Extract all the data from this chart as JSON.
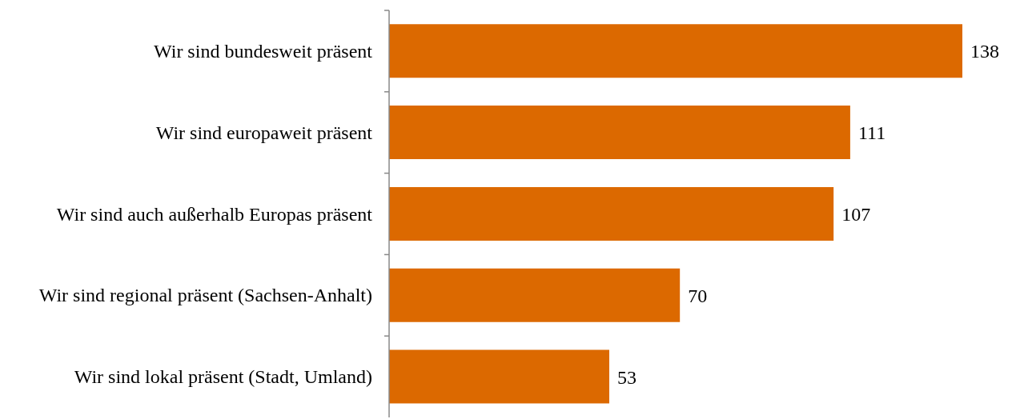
{
  "chart_data": {
    "type": "bar",
    "orientation": "horizontal",
    "categories": [
      "Wir sind bundesweit präsent",
      "Wir sind europaweit präsent",
      "Wir sind auch außerhalb Europas präsent",
      "Wir sind regional präsent (Sachsen-Anhalt)",
      "Wir sind lokal präsent (Stadt, Umland)"
    ],
    "values": [
      138,
      111,
      107,
      70,
      53
    ],
    "color": "#dc6900",
    "data_labels": true
  }
}
